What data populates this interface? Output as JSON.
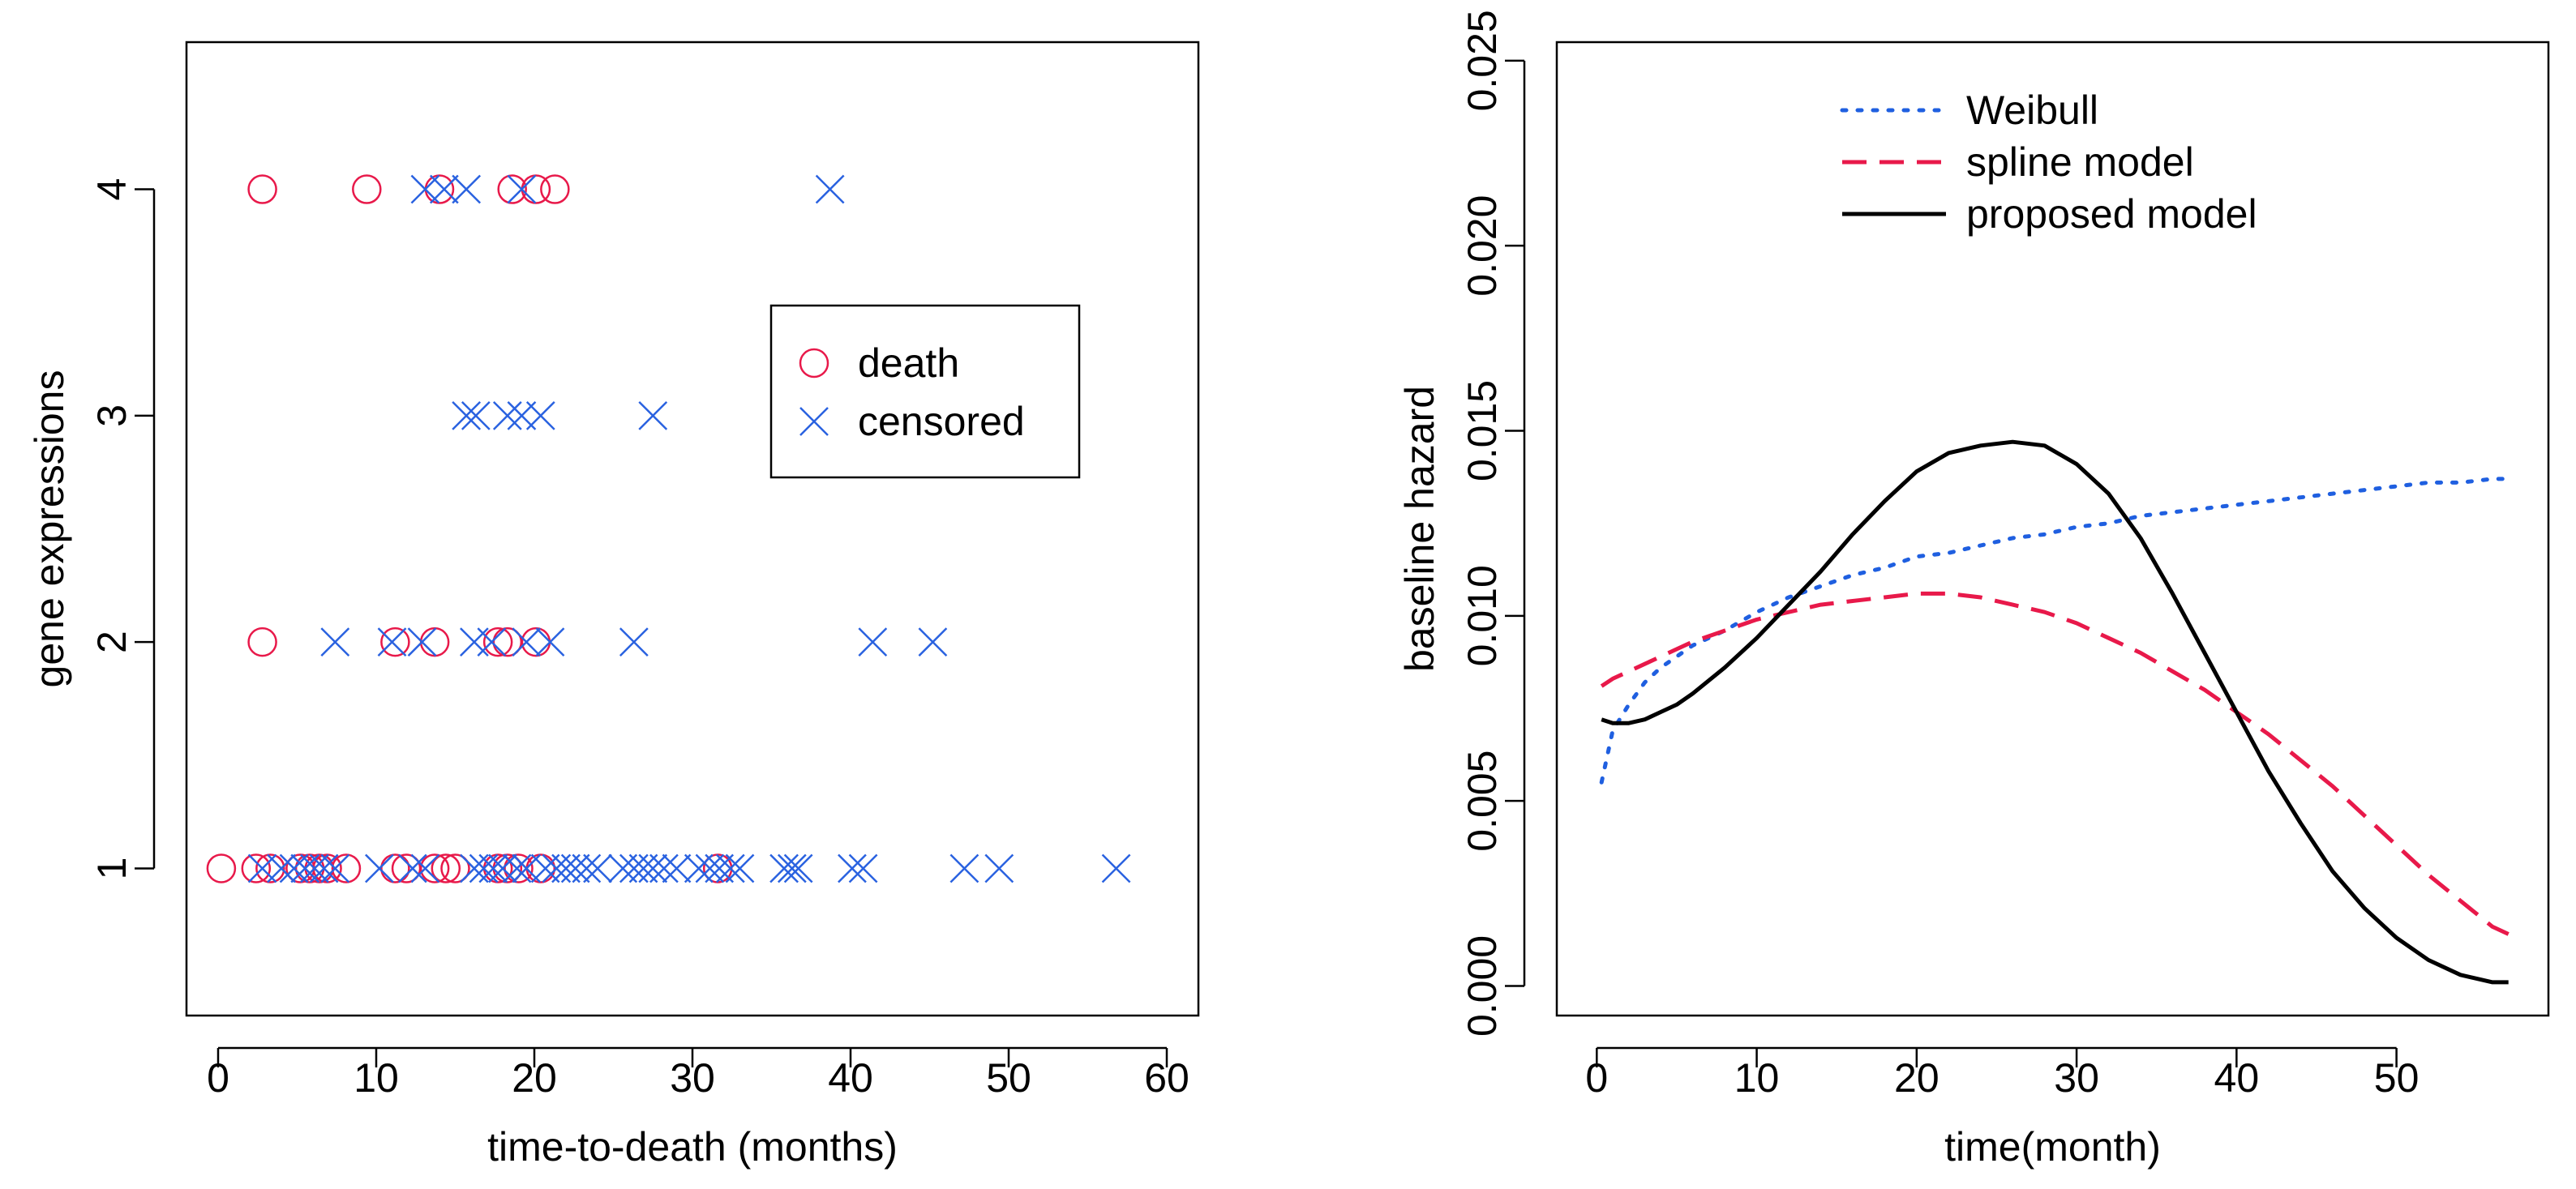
{
  "chart_data": [
    {
      "type": "scatter",
      "title": "",
      "xlabel": "time-to-death (months)",
      "ylabel": "gene expressions",
      "xlim": [
        -2,
        62
      ],
      "ylim": [
        0.35,
        4.65
      ],
      "xticks": [
        "0",
        "10",
        "20",
        "30",
        "40",
        "50",
        "60"
      ],
      "yticks": [
        "1",
        "2",
        "3",
        "4"
      ],
      "legend_position": "right",
      "series": [
        {
          "name": "death",
          "marker": "circle",
          "color": "#e8194a",
          "points": [
            [
              0.2,
              1
            ],
            [
              2.4,
              1
            ],
            [
              3.3,
              1
            ],
            [
              5.2,
              1
            ],
            [
              5.8,
              1
            ],
            [
              6.4,
              1
            ],
            [
              6.9,
              1
            ],
            [
              8.1,
              1
            ],
            [
              11.2,
              1
            ],
            [
              11.9,
              1
            ],
            [
              13.7,
              1
            ],
            [
              14.4,
              1
            ],
            [
              15.0,
              1
            ],
            [
              17.7,
              1
            ],
            [
              18.3,
              1
            ],
            [
              19.0,
              1
            ],
            [
              20.4,
              1
            ],
            [
              31.6,
              1
            ],
            [
              2.8,
              2
            ],
            [
              11.2,
              2
            ],
            [
              13.7,
              2
            ],
            [
              17.7,
              2
            ],
            [
              18.3,
              2
            ],
            [
              20.1,
              2
            ],
            [
              2.8,
              4
            ],
            [
              9.4,
              4
            ],
            [
              14.0,
              4
            ],
            [
              18.6,
              4
            ],
            [
              20.1,
              4
            ],
            [
              21.3,
              4
            ]
          ]
        },
        {
          "name": "censored",
          "marker": "x",
          "color": "#2a62e0",
          "points": [
            [
              2.8,
              1
            ],
            [
              4.0,
              1
            ],
            [
              4.8,
              1
            ],
            [
              5.5,
              1
            ],
            [
              6.1,
              1
            ],
            [
              6.7,
              1
            ],
            [
              7.4,
              1
            ],
            [
              10.2,
              1
            ],
            [
              12.3,
              1
            ],
            [
              13.1,
              1
            ],
            [
              16.2,
              1
            ],
            [
              16.8,
              1
            ],
            [
              17.4,
              1
            ],
            [
              18.0,
              1
            ],
            [
              18.9,
              1
            ],
            [
              19.5,
              1
            ],
            [
              20.7,
              1
            ],
            [
              21.4,
              1
            ],
            [
              22.0,
              1
            ],
            [
              22.6,
              1
            ],
            [
              23.3,
              1
            ],
            [
              24.0,
              1
            ],
            [
              25.6,
              1
            ],
            [
              26.3,
              1
            ],
            [
              26.9,
              1
            ],
            [
              27.5,
              1
            ],
            [
              28.2,
              1
            ],
            [
              29.0,
              1
            ],
            [
              30.4,
              1
            ],
            [
              31.1,
              1
            ],
            [
              31.7,
              1
            ],
            [
              32.4,
              1
            ],
            [
              33.0,
              1
            ],
            [
              35.8,
              1
            ],
            [
              36.3,
              1
            ],
            [
              36.7,
              1
            ],
            [
              40.1,
              1
            ],
            [
              40.8,
              1
            ],
            [
              47.2,
              1
            ],
            [
              49.4,
              1
            ],
            [
              56.8,
              1
            ],
            [
              7.4,
              2
            ],
            [
              11.0,
              2
            ],
            [
              12.9,
              2
            ],
            [
              16.2,
              2
            ],
            [
              17.3,
              2
            ],
            [
              19.5,
              2
            ],
            [
              21.0,
              2
            ],
            [
              26.3,
              2
            ],
            [
              41.4,
              2
            ],
            [
              45.2,
              2
            ],
            [
              15.7,
              3
            ],
            [
              16.3,
              3
            ],
            [
              18.3,
              3
            ],
            [
              19.2,
              3
            ],
            [
              20.4,
              3
            ],
            [
              27.5,
              3
            ],
            [
              13.1,
              4
            ],
            [
              14.3,
              4
            ],
            [
              15.7,
              4
            ],
            [
              19.2,
              4
            ],
            [
              38.7,
              4
            ]
          ]
        }
      ]
    },
    {
      "type": "line",
      "title": "",
      "xlabel": "time(month)",
      "ylabel": "baseline hazard",
      "xlim": [
        -2.5,
        59.5
      ],
      "ylim": [
        -0.0008,
        0.0255
      ],
      "xticks": [
        "0",
        "10",
        "20",
        "30",
        "40",
        "50"
      ],
      "yticks": [
        "0.000",
        "0.005",
        "0.010",
        "0.015",
        "0.020",
        "0.025"
      ],
      "legend_position": "top-center",
      "x": [
        0.3,
        1,
        2,
        3,
        4,
        5,
        6,
        8,
        10,
        12,
        14,
        16,
        18,
        20,
        22,
        24,
        26,
        28,
        30,
        32,
        34,
        36,
        38,
        40,
        42,
        44,
        46,
        48,
        50,
        52,
        54,
        56,
        57
      ],
      "series": [
        {
          "name": "Weibull",
          "style": "dotted",
          "color": "#1f5fe0",
          "values": [
            0.0055,
            0.0069,
            0.0076,
            0.0082,
            0.0086,
            0.0089,
            0.0092,
            0.0096,
            0.0101,
            0.0105,
            0.0108,
            0.0111,
            0.0113,
            0.0116,
            0.0117,
            0.0119,
            0.0121,
            0.0122,
            0.0124,
            0.0125,
            0.0127,
            0.0128,
            0.0129,
            0.013,
            0.0131,
            0.0132,
            0.0133,
            0.0134,
            0.0135,
            0.0136,
            0.0136,
            0.0137,
            0.0137
          ]
        },
        {
          "name": "spline model",
          "style": "dashed",
          "color": "#e8194a",
          "values": [
            0.0081,
            0.0083,
            0.0085,
            0.0087,
            0.0089,
            0.0091,
            0.0093,
            0.0096,
            0.0099,
            0.0101,
            0.0103,
            0.0104,
            0.0105,
            0.0106,
            0.0106,
            0.0105,
            0.0103,
            0.0101,
            0.0098,
            0.0094,
            0.009,
            0.0085,
            0.008,
            0.0074,
            0.0068,
            0.0061,
            0.0054,
            0.0046,
            0.0038,
            0.003,
            0.0023,
            0.0016,
            0.0014
          ]
        },
        {
          "name": "proposed model",
          "style": "solid",
          "color": "#000000",
          "values": [
            0.0072,
            0.0071,
            0.0071,
            0.0072,
            0.0074,
            0.0076,
            0.0079,
            0.0086,
            0.0094,
            0.0103,
            0.0112,
            0.0122,
            0.0131,
            0.0139,
            0.0144,
            0.0146,
            0.0147,
            0.0146,
            0.0141,
            0.0133,
            0.0121,
            0.0106,
            0.009,
            0.0074,
            0.0058,
            0.0044,
            0.0031,
            0.0021,
            0.0013,
            0.0007,
            0.0003,
            0.0001,
            0.0001
          ]
        }
      ]
    }
  ]
}
